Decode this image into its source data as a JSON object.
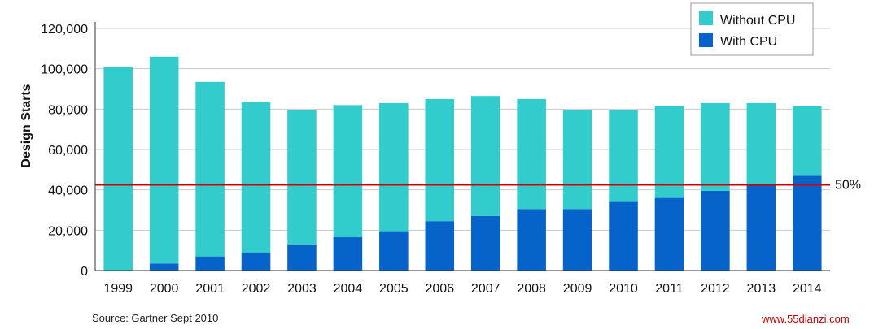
{
  "chart_data": {
    "type": "bar",
    "stacked": true,
    "categories": [
      "1999",
      "2000",
      "2001",
      "2002",
      "2003",
      "2004",
      "2005",
      "2006",
      "2007",
      "2008",
      "2009",
      "2010",
      "2011",
      "2012",
      "2013",
      "2014"
    ],
    "series": [
      {
        "name": "With CPU",
        "color": "#0563c9",
        "values": [
          0,
          3500,
          7000,
          9000,
          13000,
          16500,
          19500,
          24500,
          27000,
          30500,
          30500,
          34000,
          36000,
          39500,
          43000,
          47000
        ]
      },
      {
        "name": "Without CPU",
        "color": "#33cccc",
        "values": [
          101000,
          102500,
          86500,
          74500,
          66500,
          65500,
          63500,
          60500,
          59500,
          54500,
          49000,
          45500,
          45500,
          43500,
          40000,
          34500
        ]
      }
    ],
    "ylabel": "Design Starts",
    "ylim": [
      0,
      120000
    ],
    "yticks": [
      0,
      20000,
      40000,
      60000,
      80000,
      100000,
      120000
    ],
    "ytick_labels": [
      "0",
      "20,000",
      "40,000",
      "60,000",
      "80,000",
      "100,000",
      "120,000"
    ],
    "reference_line": {
      "value": 42500,
      "label": "50%",
      "color": "#cc0000"
    },
    "legend_position": "top-right",
    "grid": "horizontal"
  },
  "source_text": "Source: Gartner Sept 2010",
  "watermark": "www.55dianzi.com"
}
